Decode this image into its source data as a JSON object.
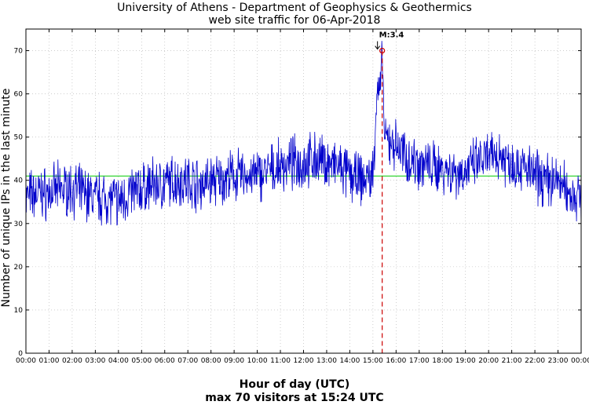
{
  "chart_data": {
    "type": "line",
    "title": "University of Athens - Department of Geophysics & Geothermics",
    "subtitle": "web site traffic for 06-Apr-2018",
    "xlabel": "Hour of day (UTC)",
    "caption": "max 70 visitors at 15:24 UTC",
    "ylabel": "Number of unique IPs in the last minute",
    "ylim": [
      0,
      75
    ],
    "xlim": [
      "00:00",
      "24:00"
    ],
    "y_ticks": [
      0,
      10,
      20,
      30,
      40,
      50,
      60,
      70
    ],
    "x_ticks": [
      "00:00",
      "01:00",
      "02:00",
      "03:00",
      "04:00",
      "05:00",
      "06:00",
      "07:00",
      "08:00",
      "09:00",
      "10:00",
      "11:00",
      "12:00",
      "13:00",
      "14:00",
      "15:00",
      "16:00",
      "17:00",
      "18:00",
      "19:00",
      "20:00",
      "21:00",
      "22:00",
      "23:00",
      "00:00"
    ],
    "grid": true,
    "series": [
      {
        "color": "#0000cc",
        "x": [
          "00:00",
          "00:30",
          "01:00",
          "01:30",
          "02:00",
          "02:30",
          "03:00",
          "03:30",
          "04:00",
          "04:30",
          "05:00",
          "05:30",
          "06:00",
          "06:30",
          "07:00",
          "07:30",
          "08:00",
          "08:30",
          "09:00",
          "09:30",
          "10:00",
          "10:30",
          "11:00",
          "11:30",
          "12:00",
          "12:30",
          "13:00",
          "13:30",
          "14:00",
          "14:30",
          "15:00",
          "15:10",
          "15:20",
          "15:24",
          "15:30",
          "15:45",
          "16:00",
          "16:30",
          "17:00",
          "17:30",
          "18:00",
          "18:30",
          "19:00",
          "19:30",
          "20:00",
          "20:30",
          "21:00",
          "21:30",
          "22:00",
          "22:30",
          "23:00",
          "23:30",
          "24:00"
        ],
        "y": [
          36,
          37,
          37,
          38,
          38,
          37,
          36,
          36,
          35,
          37,
          38,
          39,
          39,
          40,
          40,
          39,
          40,
          40,
          41,
          41,
          41,
          42,
          43,
          44,
          44,
          45,
          44,
          43,
          41,
          40,
          41,
          60,
          62,
          70,
          50,
          49,
          48,
          45,
          44,
          43,
          43,
          42,
          42,
          44,
          45,
          46,
          44,
          43,
          41,
          40,
          40,
          37,
          36
        ]
      }
    ],
    "reference_line": {
      "value": 41,
      "color": "#00cc00"
    },
    "max_marker": {
      "time": "15:24",
      "value": 70,
      "label": "M:3.4",
      "color": "#cc0000"
    }
  }
}
